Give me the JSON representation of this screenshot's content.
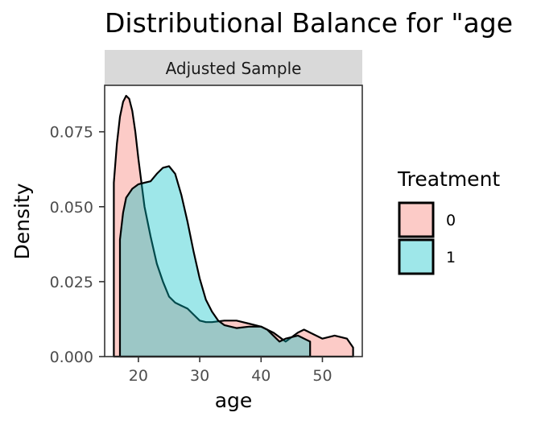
{
  "chart_data": {
    "type": "area",
    "title": "Distributional Balance for \"age",
    "facet": "Adjusted Sample",
    "xlabel": "age",
    "ylabel": "Density",
    "xlim": [
      14.5,
      56.5
    ],
    "ylim": [
      0,
      0.0905
    ],
    "x_ticks": [
      20,
      30,
      40,
      50
    ],
    "x_tick_labels": [
      "20",
      "30",
      "40",
      "50"
    ],
    "y_ticks": [
      0,
      0.025,
      0.05,
      0.075
    ],
    "y_tick_labels": [
      "0.000",
      "0.025",
      "0.050",
      "0.075"
    ],
    "grid": false,
    "legend": {
      "title": "Treatment",
      "placement": "right",
      "entries": [
        {
          "label": "0",
          "color": "#F8766D"
        },
        {
          "label": "1",
          "color": "#00BFC4"
        }
      ]
    },
    "series": [
      {
        "name": "0",
        "color": "#F8766D",
        "x": [
          16,
          16.5,
          17,
          17.5,
          18,
          18.5,
          19,
          19.5,
          20,
          20.5,
          21,
          22,
          23,
          24,
          25,
          26,
          27,
          28,
          29,
          30,
          31,
          32,
          34,
          36,
          38,
          40,
          42,
          44,
          46,
          47,
          48,
          50,
          52,
          54,
          55
        ],
        "y": [
          0.058,
          0.071,
          0.08,
          0.085,
          0.087,
          0.086,
          0.082,
          0.075,
          0.066,
          0.058,
          0.05,
          0.04,
          0.031,
          0.025,
          0.02,
          0.018,
          0.017,
          0.016,
          0.014,
          0.012,
          0.0115,
          0.0115,
          0.012,
          0.012,
          0.011,
          0.01,
          0.008,
          0.005,
          0.008,
          0.009,
          0.008,
          0.006,
          0.007,
          0.006,
          0.003
        ]
      },
      {
        "name": "1",
        "color": "#00BFC4",
        "x": [
          17,
          17.5,
          18,
          19,
          20,
          21,
          22,
          23,
          24,
          25,
          26,
          27,
          28,
          29,
          30,
          31,
          32,
          33,
          34,
          36,
          38,
          40,
          41,
          42,
          43,
          44,
          46,
          48
        ],
        "y": [
          0.039,
          0.048,
          0.053,
          0.056,
          0.0575,
          0.058,
          0.0585,
          0.061,
          0.063,
          0.0635,
          0.061,
          0.054,
          0.045,
          0.035,
          0.026,
          0.019,
          0.015,
          0.012,
          0.0105,
          0.0095,
          0.01,
          0.01,
          0.009,
          0.007,
          0.005,
          0.006,
          0.007,
          0.005
        ]
      }
    ]
  }
}
